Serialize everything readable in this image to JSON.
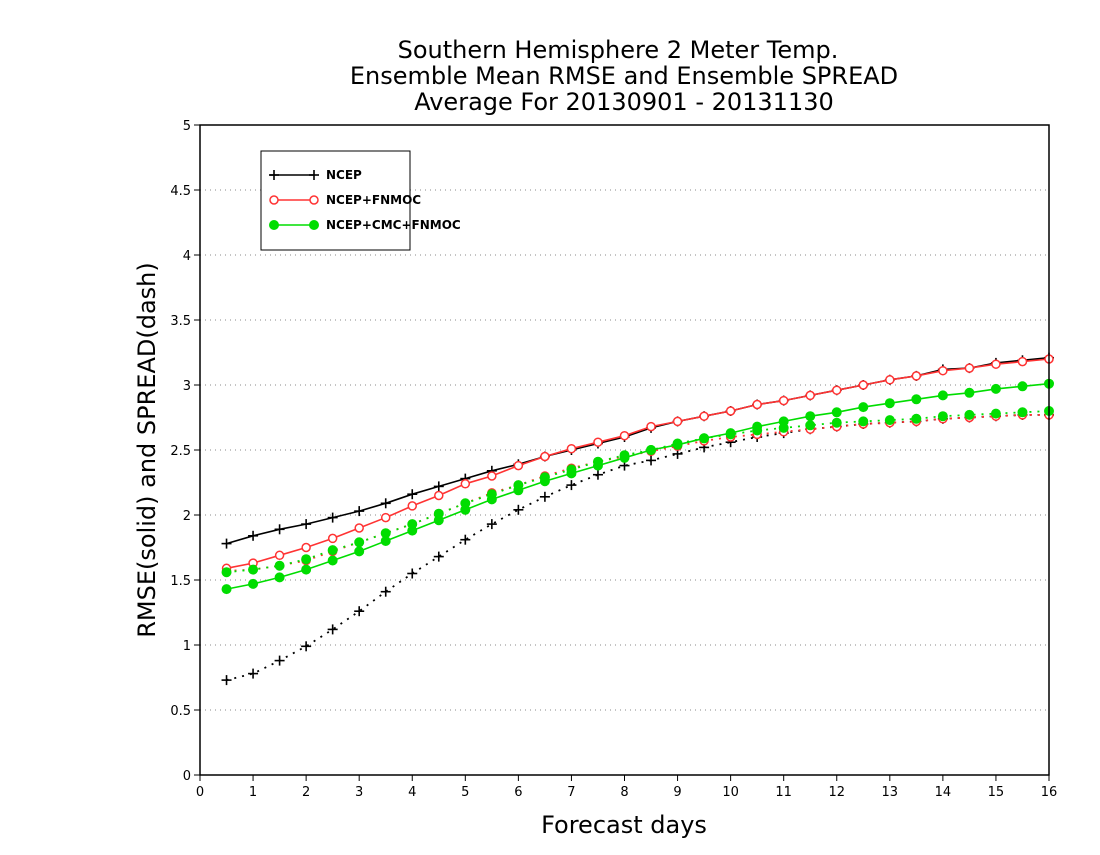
{
  "chart_data": {
    "type": "line",
    "title": [
      "Southern Hemisphere 2 Meter Temp.",
      "Ensemble Mean RMSE and Ensemble SPREAD",
      "Average For 20130901 - 20131130"
    ],
    "xlabel": "Forecast days",
    "ylabel": "RMSE(solid) and SPREAD(dash)",
    "xlim": [
      0,
      16
    ],
    "ylim": [
      0,
      5
    ],
    "xticks": [
      "0",
      "1",
      "2",
      "3",
      "4",
      "5",
      "6",
      "7",
      "8",
      "9",
      "10",
      "11",
      "12",
      "13",
      "14",
      "15",
      "16"
    ],
    "yticks": [
      "0",
      "0.5",
      "1",
      "1.5",
      "2",
      "2.5",
      "3",
      "3.5",
      "4",
      "4.5",
      "5"
    ],
    "grid": true,
    "legend_position": "top-left",
    "x": [
      0.5,
      1,
      1.5,
      2,
      2.5,
      3,
      3.5,
      4,
      4.5,
      5,
      5.5,
      6,
      6.5,
      7,
      7.5,
      8,
      8.5,
      9,
      9.5,
      10,
      10.5,
      11,
      11.5,
      12,
      12.5,
      13,
      13.5,
      14,
      14.5,
      15,
      15.5,
      16
    ],
    "series": [
      {
        "name": "NCEP",
        "color": "#000000",
        "marker": "plus",
        "rmse": [
          1.78,
          1.84,
          1.89,
          1.93,
          1.98,
          2.03,
          2.09,
          2.16,
          2.22,
          2.28,
          2.34,
          2.39,
          2.45,
          2.5,
          2.55,
          2.6,
          2.67,
          2.72,
          2.76,
          2.8,
          2.85,
          2.88,
          2.92,
          2.96,
          3.0,
          3.04,
          3.07,
          3.12,
          3.13,
          3.17,
          3.19,
          3.21
        ],
        "spread": [
          0.73,
          0.78,
          0.88,
          0.99,
          1.12,
          1.26,
          1.41,
          1.55,
          1.68,
          1.81,
          1.93,
          2.04,
          2.14,
          2.23,
          2.31,
          2.38,
          2.42,
          2.47,
          2.52,
          2.56,
          2.6,
          2.63,
          2.66,
          2.68,
          2.7,
          2.71,
          2.72,
          2.74,
          2.75,
          2.76,
          2.77,
          2.77
        ]
      },
      {
        "name": "NCEP+FNMOC",
        "color": "#ff3333",
        "marker": "open-circle",
        "rmse": [
          1.59,
          1.63,
          1.69,
          1.75,
          1.82,
          1.9,
          1.98,
          2.07,
          2.15,
          2.24,
          2.3,
          2.38,
          2.45,
          2.51,
          2.56,
          2.61,
          2.68,
          2.72,
          2.76,
          2.8,
          2.85,
          2.88,
          2.92,
          2.96,
          3.0,
          3.04,
          3.07,
          3.11,
          3.13,
          3.16,
          3.18,
          3.2
        ],
        "spread": [
          1.57,
          1.58,
          1.61,
          1.65,
          1.72,
          1.79,
          1.86,
          1.93,
          2.01,
          2.09,
          2.17,
          2.23,
          2.3,
          2.36,
          2.41,
          2.45,
          2.49,
          2.53,
          2.57,
          2.6,
          2.62,
          2.64,
          2.66,
          2.68,
          2.7,
          2.71,
          2.72,
          2.74,
          2.75,
          2.76,
          2.77,
          2.77
        ]
      },
      {
        "name": "NCEP+CMC+FNMOC",
        "color": "#00dd00",
        "marker": "filled-circle",
        "rmse": [
          1.43,
          1.47,
          1.52,
          1.58,
          1.65,
          1.72,
          1.8,
          1.88,
          1.96,
          2.04,
          2.12,
          2.19,
          2.26,
          2.32,
          2.38,
          2.44,
          2.5,
          2.54,
          2.59,
          2.63,
          2.68,
          2.72,
          2.76,
          2.79,
          2.83,
          2.86,
          2.89,
          2.92,
          2.94,
          2.97,
          2.99,
          3.01
        ],
        "spread": [
          1.56,
          1.58,
          1.61,
          1.66,
          1.73,
          1.79,
          1.86,
          1.93,
          2.01,
          2.09,
          2.16,
          2.23,
          2.29,
          2.35,
          2.41,
          2.46,
          2.5,
          2.55,
          2.59,
          2.62,
          2.65,
          2.67,
          2.69,
          2.71,
          2.72,
          2.73,
          2.74,
          2.76,
          2.77,
          2.78,
          2.79,
          2.8
        ]
      }
    ]
  }
}
